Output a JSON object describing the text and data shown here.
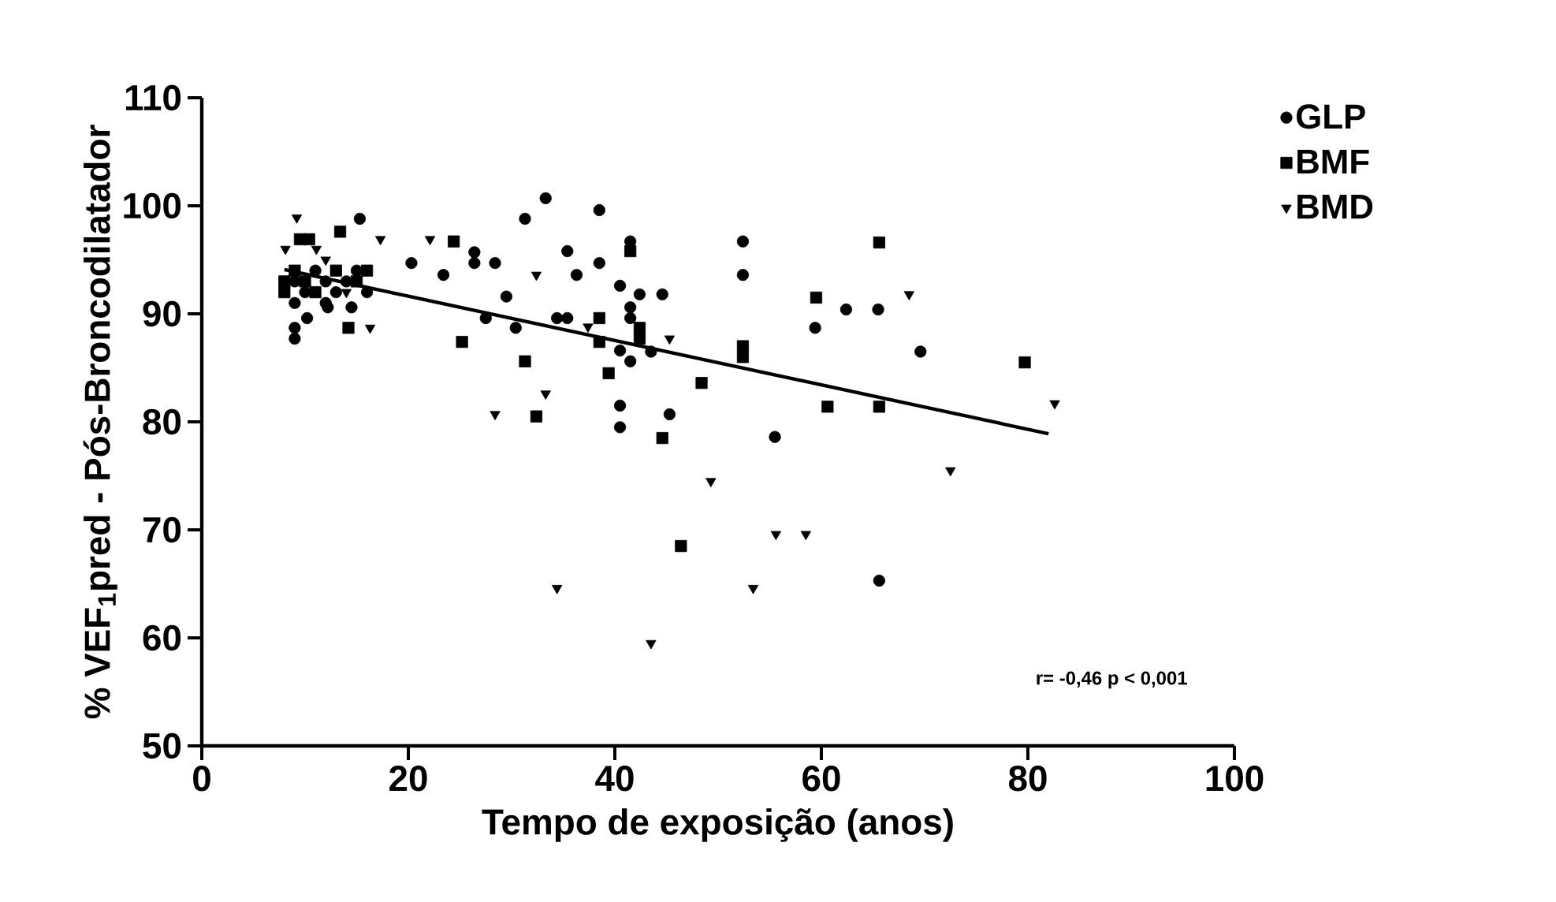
{
  "chart_data": {
    "type": "scatter",
    "xlabel": "Tempo de exposição (anos)",
    "ylabel": "% VEF$_{1}$pred - Pós-Broncodilatador",
    "xlim": [
      0,
      100
    ],
    "ylim": [
      50,
      110
    ],
    "xticks": [
      0,
      20,
      40,
      60,
      80,
      100
    ],
    "yticks": [
      50,
      60,
      70,
      80,
      90,
      100,
      110
    ],
    "legend": "top right",
    "grid": false,
    "annotations": [
      "r= -0,46   p < 0,001"
    ],
    "series": [
      {
        "name": "GLP",
        "color": "#000000",
        "marker": "circle",
        "x": [
          15.3,
          20.3,
          23.4,
          26.4,
          26.4,
          28.4,
          29.5,
          12.2,
          10.2,
          9,
          9,
          14.5,
          27.5,
          33.3,
          38.5,
          31.3,
          35.4,
          36.3,
          38.5,
          41.5,
          40.5,
          42.4,
          44.6,
          41.5,
          41.5,
          30.4,
          34.4,
          35.4,
          40.5,
          41.5,
          43.5,
          40.5,
          40.5,
          45.3,
          52.4,
          52.4,
          55.5,
          62.4,
          65.5,
          59.4,
          69.6,
          65.6,
          9,
          10,
          11,
          12,
          13,
          14,
          15,
          16,
          9,
          12
        ],
        "values": [
          98.8,
          94.7,
          93.6,
          95.7,
          94.7,
          94.7,
          91.6,
          90.6,
          89.6,
          88.7,
          87.7,
          90.6,
          89.6,
          100.7,
          99.6,
          98.8,
          95.8,
          93.6,
          94.7,
          96.7,
          92.6,
          91.8,
          91.8,
          90.6,
          89.6,
          88.7,
          89.6,
          89.6,
          86.6,
          85.6,
          86.5,
          81.5,
          79.5,
          80.7,
          96.7,
          93.6,
          78.6,
          90.4,
          90.4,
          88.7,
          86.5,
          65.3,
          93,
          92,
          94,
          93,
          92,
          93,
          94,
          92,
          91,
          91
        ]
      },
      {
        "name": "BMF",
        "color": "#000000",
        "marker": "square",
        "x": [
          13.4,
          24.4,
          14.2,
          9.5,
          10.4,
          25.2,
          41.5,
          38.5,
          38.5,
          42.4,
          42.4,
          31.3,
          39.4,
          32.4,
          44.6,
          48.4,
          52.4,
          52.4,
          65.6,
          59.5,
          79.7,
          60.6,
          65.6,
          46.4,
          8,
          9,
          10,
          11,
          13,
          15,
          16,
          8
        ],
        "values": [
          97.6,
          96.7,
          88.7,
          96.9,
          96.9,
          87.4,
          95.8,
          89.6,
          87.4,
          88.7,
          87.7,
          85.6,
          84.5,
          80.5,
          78.5,
          83.6,
          87,
          86,
          96.6,
          91.5,
          85.5,
          81.4,
          81.4,
          68.5,
          92,
          94,
          93,
          92,
          94,
          93,
          94,
          93
        ]
      },
      {
        "name": "BMD",
        "color": "#000000",
        "marker": "triangle",
        "x": [
          9.2,
          17.3,
          22.1,
          8.1,
          11.1,
          16.3,
          28.4,
          32.4,
          37.4,
          45.3,
          33.3,
          68.5,
          82.6,
          49.3,
          55.6,
          58.5,
          34.4,
          53.4,
          43.5,
          72.5,
          12,
          14
        ],
        "values": [
          98.9,
          96.9,
          96.9,
          96,
          96,
          88.7,
          80.7,
          93.6,
          88.8,
          87.7,
          82.6,
          91.8,
          81.7,
          74.5,
          69.6,
          69.6,
          64.6,
          64.6,
          59.5,
          75.5,
          95,
          92
        ]
      },
      {
        "type": "line",
        "color": "#000000",
        "marker": "none",
        "x": [
          8,
          82
        ],
        "values": [
          94.1,
          78.9
        ]
      }
    ]
  }
}
